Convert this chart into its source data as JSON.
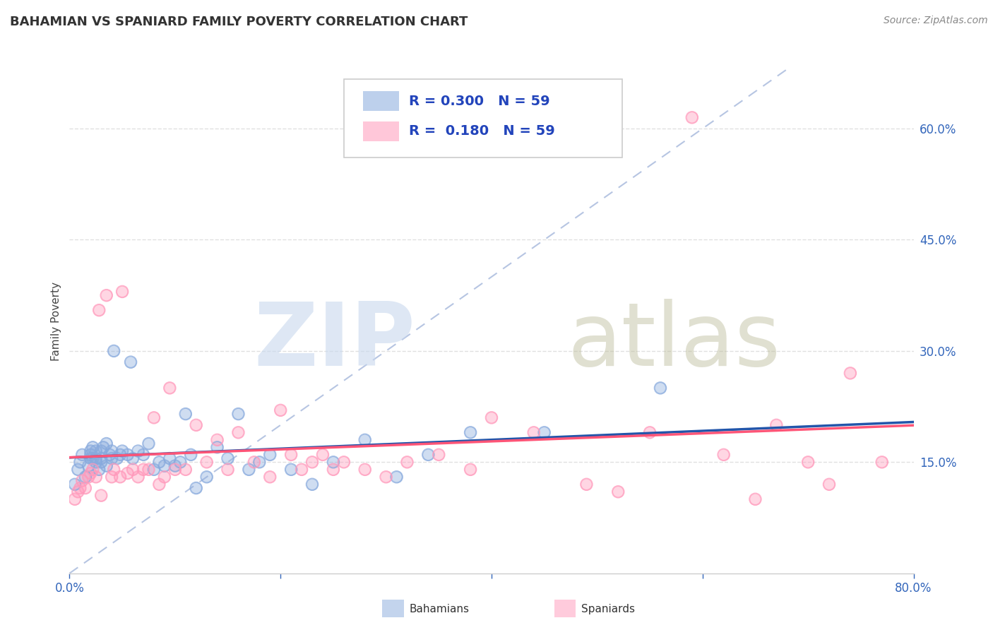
{
  "title": "BAHAMIAN VS SPANIARD FAMILY POVERTY CORRELATION CHART",
  "source": "Source: ZipAtlas.com",
  "ylabel": "Family Poverty",
  "xlim": [
    0.0,
    0.8
  ],
  "ylim": [
    0.0,
    0.68
  ],
  "ytick_labels_right": [
    "15.0%",
    "30.0%",
    "45.0%",
    "60.0%"
  ],
  "ytick_vals_right": [
    0.15,
    0.3,
    0.45,
    0.6
  ],
  "bahamian_color": "#88AADD",
  "spaniard_color": "#FF99BB",
  "bahamian_line_color": "#2255AA",
  "spaniard_line_color": "#FF5577",
  "diagonal_color": "#AABBDD",
  "watermark_color1": "#C8D8EE",
  "watermark_color2": "#BBBB99",
  "legend_r_bahamian": "0.300",
  "legend_r_spaniard": "0.180",
  "legend_n": "59",
  "bahamian_x": [
    0.005,
    0.008,
    0.01,
    0.012,
    0.015,
    0.018,
    0.02,
    0.02,
    0.02,
    0.022,
    0.022,
    0.025,
    0.025,
    0.025,
    0.028,
    0.03,
    0.03,
    0.03,
    0.032,
    0.035,
    0.035,
    0.038,
    0.04,
    0.04,
    0.042,
    0.045,
    0.048,
    0.05,
    0.055,
    0.058,
    0.06,
    0.065,
    0.07,
    0.075,
    0.08,
    0.085,
    0.09,
    0.095,
    0.1,
    0.105,
    0.11,
    0.115,
    0.12,
    0.13,
    0.14,
    0.15,
    0.16,
    0.17,
    0.18,
    0.19,
    0.21,
    0.23,
    0.25,
    0.28,
    0.31,
    0.34,
    0.38,
    0.45,
    0.56
  ],
  "bahamian_y": [
    0.12,
    0.14,
    0.15,
    0.16,
    0.13,
    0.145,
    0.155,
    0.16,
    0.165,
    0.155,
    0.17,
    0.15,
    0.155,
    0.165,
    0.14,
    0.15,
    0.155,
    0.165,
    0.17,
    0.145,
    0.175,
    0.16,
    0.155,
    0.165,
    0.3,
    0.155,
    0.16,
    0.165,
    0.16,
    0.285,
    0.155,
    0.165,
    0.16,
    0.175,
    0.14,
    0.15,
    0.145,
    0.155,
    0.145,
    0.15,
    0.215,
    0.16,
    0.115,
    0.13,
    0.17,
    0.155,
    0.215,
    0.14,
    0.15,
    0.16,
    0.14,
    0.12,
    0.15,
    0.18,
    0.13,
    0.16,
    0.19,
    0.19,
    0.25
  ],
  "spaniard_x": [
    0.005,
    0.008,
    0.01,
    0.012,
    0.015,
    0.018,
    0.02,
    0.022,
    0.025,
    0.028,
    0.03,
    0.035,
    0.04,
    0.042,
    0.048,
    0.05,
    0.055,
    0.06,
    0.065,
    0.07,
    0.075,
    0.08,
    0.085,
    0.09,
    0.095,
    0.1,
    0.11,
    0.12,
    0.13,
    0.14,
    0.15,
    0.16,
    0.175,
    0.19,
    0.2,
    0.21,
    0.22,
    0.23,
    0.24,
    0.25,
    0.26,
    0.28,
    0.3,
    0.32,
    0.35,
    0.38,
    0.4,
    0.44,
    0.49,
    0.52,
    0.55,
    0.59,
    0.62,
    0.65,
    0.67,
    0.7,
    0.72,
    0.74,
    0.77
  ],
  "spaniard_y": [
    0.1,
    0.11,
    0.115,
    0.125,
    0.115,
    0.13,
    0.135,
    0.14,
    0.13,
    0.355,
    0.105,
    0.375,
    0.13,
    0.14,
    0.13,
    0.38,
    0.135,
    0.14,
    0.13,
    0.14,
    0.14,
    0.21,
    0.12,
    0.13,
    0.25,
    0.14,
    0.14,
    0.2,
    0.15,
    0.18,
    0.14,
    0.19,
    0.15,
    0.13,
    0.22,
    0.16,
    0.14,
    0.15,
    0.16,
    0.14,
    0.15,
    0.14,
    0.13,
    0.15,
    0.16,
    0.14,
    0.21,
    0.19,
    0.12,
    0.11,
    0.19,
    0.615,
    0.16,
    0.1,
    0.2,
    0.15,
    0.12,
    0.27,
    0.15
  ],
  "background_color": "#FFFFFF",
  "grid_color": "#DDDDDD"
}
